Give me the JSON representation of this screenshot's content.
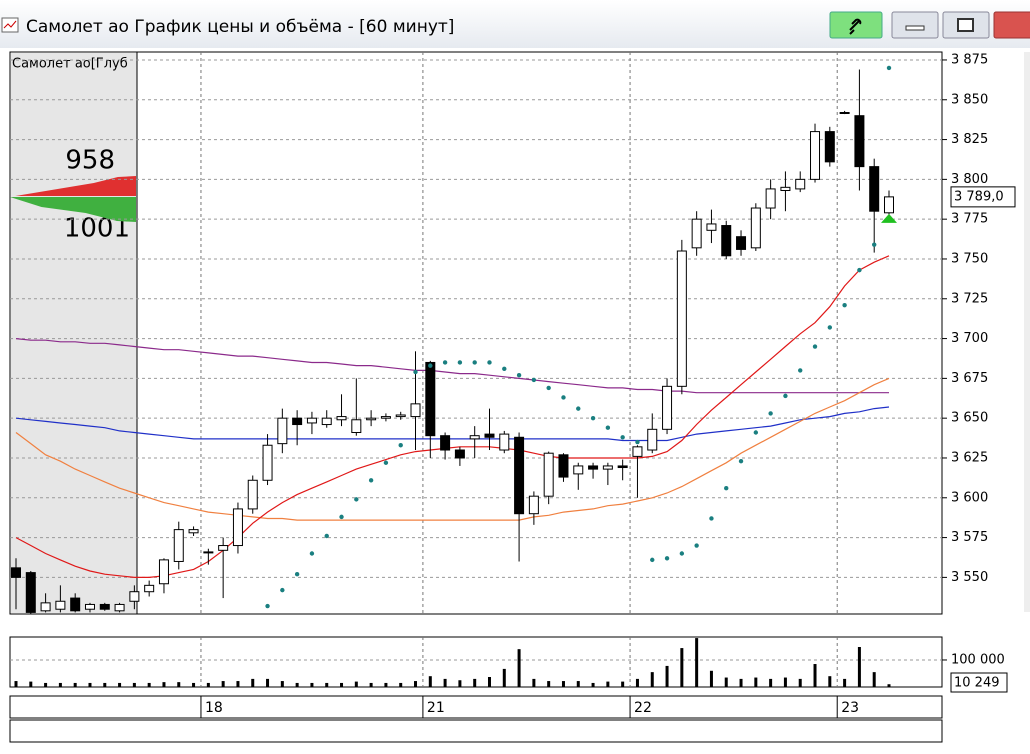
{
  "window": {
    "title": "Самолет ао График цены и объёма - [60 минут]"
  },
  "order_book": {
    "label": "Самолет ао[Глуб",
    "ask": 958,
    "bid": 1001
  },
  "chart_data": [
    {
      "type": "candlestick",
      "categories": [
        null,
        null,
        null,
        null,
        null,
        null,
        null,
        null,
        null,
        null,
        null,
        null,
        null,
        "18",
        null,
        null,
        null,
        null,
        null,
        null,
        null,
        null,
        null,
        null,
        null,
        null,
        null,
        null,
        "21",
        null,
        null,
        null,
        null,
        null,
        null,
        null,
        null,
        null,
        null,
        null,
        null,
        null,
        "22",
        null,
        null,
        null,
        null,
        null,
        null,
        null,
        null,
        null,
        null,
        null,
        null,
        null,
        "23",
        null,
        null,
        null
      ],
      "open": [
        3556,
        3553,
        3529,
        3530,
        3537,
        3530,
        3533,
        3529,
        3535,
        3541,
        3546,
        3560,
        3578,
        3566,
        3567,
        3570,
        3593,
        3611,
        3634,
        3650,
        3647,
        3646,
        3649,
        3641,
        3649,
        3650,
        3651,
        3651,
        3685,
        3639,
        3630,
        3637,
        3640,
        3630,
        3638,
        3590,
        3601,
        3627,
        3615,
        3620,
        3618,
        3620,
        3626,
        3630,
        3643,
        3670,
        3757,
        3768,
        3771,
        3764,
        3757,
        3782,
        3793,
        3794,
        3800,
        3830,
        3842,
        3840,
        3808,
        3779
      ],
      "high": [
        3562,
        3554,
        3540,
        3545,
        3540,
        3534,
        3534,
        3534,
        3545,
        3548,
        3562,
        3585,
        3582,
        3568,
        3575,
        3597,
        3614,
        3640,
        3656,
        3655,
        3654,
        3655,
        3665,
        3675,
        3655,
        3653,
        3654,
        3692,
        3686,
        3641,
        3632,
        3645,
        3656,
        3642,
        3641,
        3604,
        3629,
        3628,
        3622,
        3622,
        3622,
        3624,
        3633,
        3653,
        3675,
        3762,
        3780,
        3781,
        3774,
        3768,
        3785,
        3800,
        3805,
        3805,
        3835,
        3833,
        3843,
        3869,
        3813,
        3793
      ],
      "low": [
        3530,
        3527,
        3528,
        3528,
        3528,
        3528,
        3529,
        3528,
        3530,
        3538,
        3540,
        3555,
        3576,
        3558,
        3537,
        3565,
        3590,
        3608,
        3628,
        3633,
        3640,
        3644,
        3645,
        3639,
        3645,
        3648,
        3649,
        3630,
        3625,
        3624,
        3620,
        3625,
        3630,
        3628,
        3560,
        3583,
        3596,
        3610,
        3605,
        3612,
        3608,
        3611,
        3600,
        3628,
        3640,
        3665,
        3752,
        3760,
        3750,
        3752,
        3755,
        3775,
        3780,
        3792,
        3798,
        3808,
        3841,
        3793,
        3754,
        3775
      ],
      "close": [
        3550,
        3528,
        3534,
        3535,
        3529,
        3533,
        3530,
        3533,
        3541,
        3545,
        3561,
        3580,
        3580,
        3566,
        3570,
        3593,
        3611,
        3633,
        3650,
        3646,
        3650,
        3650,
        3651,
        3649,
        3650,
        3651,
        3652,
        3659,
        3639,
        3630,
        3625,
        3639,
        3638,
        3640,
        3590,
        3601,
        3628,
        3613,
        3620,
        3618,
        3620,
        3619,
        3632,
        3643,
        3670,
        3755,
        3775,
        3772,
        3752,
        3756,
        3782,
        3794,
        3795,
        3800,
        3830,
        3811,
        3842,
        3808,
        3780,
        3789
      ],
      "up_color": "#ffffff",
      "down_color": "#000000",
      "lines": [
        {
          "color": "#8b2a8b",
          "values": [
            3700,
            3699,
            3699,
            3698,
            3698,
            3697,
            3697,
            3696,
            3695,
            3694,
            3693,
            3693,
            3692,
            3691,
            3690,
            3689,
            3689,
            3688,
            3687,
            3686,
            3685,
            3685,
            3684,
            3683,
            3683,
            3682,
            3681,
            3680,
            3680,
            3679,
            3678,
            3678,
            3677,
            3676,
            3675,
            3674,
            3673,
            3672,
            3671,
            3670,
            3669,
            3669,
            3668,
            3668,
            3667,
            3667,
            3666,
            3666,
            3666,
            3666,
            3666,
            3666,
            3666,
            3666,
            3666,
            3666,
            3666,
            3666,
            3666,
            3666
          ]
        },
        {
          "color": "#2030c8",
          "values": [
            3650,
            3649,
            3648,
            3647,
            3646,
            3645,
            3644,
            3642,
            3641,
            3640,
            3639,
            3638,
            3637,
            3637,
            3637,
            3637,
            3637,
            3637,
            3637,
            3637,
            3637,
            3637,
            3637,
            3637,
            3637,
            3637,
            3637,
            3637,
            3637,
            3637,
            3637,
            3637,
            3637,
            3637,
            3637,
            3637,
            3637,
            3637,
            3637,
            3637,
            3637,
            3636,
            3636,
            3636,
            3636,
            3638,
            3640,
            3641,
            3642,
            3643,
            3644,
            3645,
            3647,
            3649,
            3650,
            3651,
            3653,
            3654,
            3656,
            3657
          ]
        },
        {
          "color": "#f08040",
          "values": [
            3641,
            3634,
            3627,
            3623,
            3618,
            3614,
            3610,
            3606,
            3603,
            3600,
            3597,
            3595,
            3593,
            3591,
            3590,
            3589,
            3588,
            3587,
            3587,
            3586,
            3586,
            3586,
            3586,
            3586,
            3586,
            3586,
            3586,
            3586,
            3586,
            3586,
            3586,
            3586,
            3586,
            3586,
            3586,
            3588,
            3589,
            3591,
            3592,
            3593,
            3595,
            3596,
            3598,
            3600,
            3603,
            3607,
            3612,
            3617,
            3622,
            3628,
            3633,
            3638,
            3643,
            3648,
            3653,
            3657,
            3661,
            3666,
            3671,
            3675
          ]
        },
        {
          "color": "#e01818",
          "values": [
            3575,
            3570,
            3565,
            3561,
            3557,
            3554,
            3552,
            3551,
            3550,
            3550,
            3551,
            3553,
            3555,
            3560,
            3567,
            3575,
            3584,
            3591,
            3597,
            3602,
            3606,
            3610,
            3614,
            3618,
            3621,
            3624,
            3627,
            3629,
            3630,
            3631,
            3632,
            3632,
            3632,
            3631,
            3630,
            3628,
            3626,
            3625,
            3625,
            3625,
            3625,
            3625,
            3625,
            3626,
            3629,
            3636,
            3646,
            3655,
            3663,
            3671,
            3679,
            3687,
            3695,
            3703,
            3710,
            3720,
            3733,
            3743,
            3748,
            3752
          ]
        }
      ],
      "sar": {
        "color": "#1a7f80",
        "values": [
          null,
          null,
          null,
          null,
          null,
          null,
          null,
          null,
          null,
          null,
          null,
          null,
          null,
          null,
          null,
          null,
          null,
          3532,
          3542,
          3552,
          3565,
          3576,
          3588,
          3599,
          3611,
          3622,
          3633,
          3679,
          3683,
          3685,
          3685,
          3685,
          3685,
          3681,
          3677,
          3674,
          3669,
          3663,
          3656,
          3650,
          3644,
          3638,
          3635,
          3561,
          3562,
          3565,
          3570,
          3587,
          3606,
          3623,
          3641,
          3653,
          3664,
          3680,
          3695,
          3707,
          3721,
          3743,
          3759,
          3870
        ]
      },
      "last_price": {
        "value": 3789,
        "label": "3 789,0"
      },
      "ylim": [
        3527,
        3880
      ],
      "yticks": [
        {
          "value": 3550,
          "label": "3 550"
        },
        {
          "value": 3575,
          "label": "3 575"
        },
        {
          "value": 3600,
          "label": "3 600"
        },
        {
          "value": 3625,
          "label": "3 625"
        },
        {
          "value": 3650,
          "label": "3 650"
        },
        {
          "value": 3675,
          "label": "3 675"
        },
        {
          "value": 3700,
          "label": "3 700"
        },
        {
          "value": 3725,
          "label": "3 725"
        },
        {
          "value": 3750,
          "label": "3 750"
        },
        {
          "value": 3775,
          "label": "3 775"
        },
        {
          "value": 3800,
          "label": "3 800"
        },
        {
          "value": 3825,
          "label": "3 825"
        },
        {
          "value": 3850,
          "label": "3 850"
        },
        {
          "value": 3875,
          "label": "3 875"
        }
      ],
      "grid": true
    },
    {
      "type": "bar",
      "color": "#000000",
      "values": [
        22000,
        20000,
        15000,
        15000,
        15000,
        15000,
        15000,
        15000,
        15000,
        15000,
        18000,
        18000,
        15000,
        15000,
        22000,
        22000,
        30000,
        30000,
        22000,
        15000,
        15000,
        15000,
        15000,
        20000,
        15000,
        15000,
        15000,
        22000,
        40000,
        30000,
        25000,
        30000,
        37000,
        67000,
        140000,
        30000,
        22000,
        22000,
        22000,
        15000,
        20000,
        20000,
        30000,
        55000,
        78000,
        144000,
        181000,
        60000,
        35000,
        30000,
        35000,
        30000,
        35000,
        30000,
        85000,
        40000,
        30000,
        148000,
        55000,
        10249
      ],
      "value_labels": [
        null,
        null,
        null,
        null,
        null,
        null,
        null,
        null,
        null,
        null,
        null,
        null,
        null,
        null,
        null,
        null,
        null,
        null,
        null,
        null,
        null,
        null,
        null,
        null,
        null,
        null,
        null,
        null,
        null,
        null,
        null,
        null,
        null,
        null,
        null,
        null,
        null,
        null,
        null,
        null,
        null,
        null,
        null,
        null,
        null,
        null,
        null,
        null,
        null,
        null,
        null,
        null,
        null,
        null,
        null,
        null,
        null,
        null,
        null,
        "10 249"
      ],
      "ylim": [
        0,
        185000
      ],
      "yticks": [
        {
          "value": 100000,
          "label": "100 000"
        }
      ],
      "grid": true
    }
  ]
}
